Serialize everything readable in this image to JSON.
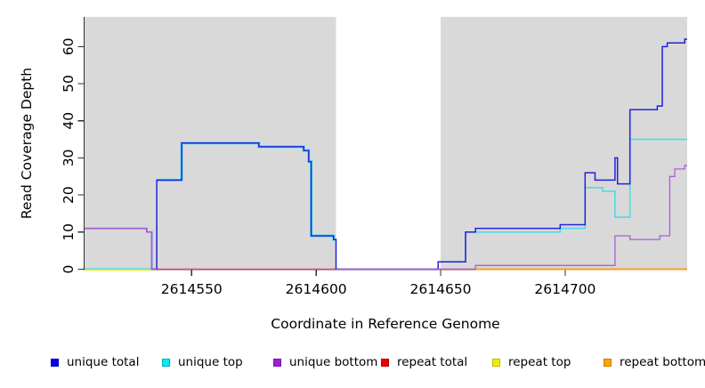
{
  "chart_data": {
    "type": "line",
    "interpolation": "step-after",
    "title": "",
    "xlabel": "Coordinate in Reference Genome",
    "ylabel": "Read Coverage Depth",
    "xlim": [
      2614507,
      2614749
    ],
    "ylim": [
      0,
      68
    ],
    "xticks": [
      2614550,
      2614600,
      2614650,
      2614700
    ],
    "yticks": [
      0,
      10,
      20,
      30,
      40,
      50,
      60
    ],
    "grid": false,
    "page_background": "#ffffff",
    "shaded_regions": [
      {
        "label": "left-gray-region",
        "x0": 2614507,
        "x1": 2614608,
        "color": "#D9D9D9"
      },
      {
        "label": "right-gray-region",
        "x0": 2614650,
        "x1": 2614749,
        "color": "#D9D9D9"
      }
    ],
    "gap_region": {
      "label": "uncovered-white-band",
      "x0": 2614608,
      "x1": 2614650
    },
    "series": [
      {
        "name": "repeat top",
        "color": "#E8E83C",
        "stroke_width": 2.6,
        "segments": [
          {
            "dy": 0.5,
            "points": [
              [
                2614507,
                0
              ],
              [
                2614534,
                0
              ]
            ]
          }
        ]
      },
      {
        "name": "repeat total",
        "color": "#E04765",
        "stroke_width": 1.5,
        "segments": [
          {
            "points": [
              [
                2614534,
                0
              ],
              [
                2614664,
                0
              ]
            ]
          }
        ]
      },
      {
        "name": "repeat bottom",
        "color": "#FF9D1E",
        "stroke_width": 1.9,
        "segments": [
          {
            "points": [
              [
                2614664,
                0
              ],
              [
                2614749,
                0
              ]
            ]
          }
        ]
      },
      {
        "name": "unique top",
        "color": "#49DEE8",
        "stroke_width": 1.6,
        "segments": [
          {
            "dy": -0.5,
            "stroke_width": 1.2,
            "points": [
              [
                2614507,
                0
              ],
              [
                2614534,
                0
              ]
            ]
          },
          {
            "stroke_width": 3.0,
            "points": [
              [
                2614536,
                24
              ],
              [
                2614546,
                34
              ],
              [
                2614577,
                33
              ],
              [
                2614595,
                32
              ],
              [
                2614597,
                29
              ],
              [
                2614598,
                9
              ],
              [
                2614607,
                8
              ],
              [
                2614608,
                8
              ]
            ]
          },
          {
            "points": [
              [
                2614649,
                2
              ],
              [
                2614660,
                10
              ],
              [
                2614698,
                11
              ],
              [
                2614708,
                22
              ],
              [
                2614715,
                21
              ],
              [
                2614720,
                14
              ],
              [
                2614726,
                35
              ],
              [
                2614749,
                35
              ]
            ]
          }
        ]
      },
      {
        "name": "unique total",
        "color": "#2222DD",
        "stroke_width": 1.5,
        "segments": [
          {
            "points": [
              [
                2614507,
                11
              ],
              [
                2614532,
                10
              ],
              [
                2614534,
                0
              ],
              [
                2614536,
                24
              ],
              [
                2614546,
                34
              ],
              [
                2614577,
                33
              ],
              [
                2614595,
                32
              ],
              [
                2614597,
                29
              ],
              [
                2614598,
                9
              ],
              [
                2614607,
                8
              ],
              [
                2614608,
                0
              ],
              [
                2614649,
                2
              ],
              [
                2614660,
                10
              ],
              [
                2614664,
                11
              ],
              [
                2614698,
                12
              ],
              [
                2614708,
                26
              ],
              [
                2614712,
                24
              ],
              [
                2614720,
                30
              ],
              [
                2614721,
                23
              ],
              [
                2614726,
                43
              ],
              [
                2614737,
                44
              ],
              [
                2614739,
                60
              ],
              [
                2614741,
                61
              ],
              [
                2614748,
                62
              ],
              [
                2614749,
                62
              ]
            ]
          }
        ]
      },
      {
        "name": "unique bottom",
        "color": "#A95FD5",
        "stroke_width": 1.3,
        "segments": [
          {
            "points": [
              [
                2614507,
                11
              ],
              [
                2614532,
                10
              ],
              [
                2614534,
                0
              ],
              [
                2614536,
                0
              ]
            ]
          },
          {
            "points": [
              [
                2614608,
                0
              ],
              [
                2614664,
                1
              ],
              [
                2614720,
                9
              ],
              [
                2614726,
                8
              ],
              [
                2614738,
                9
              ],
              [
                2614742,
                25
              ],
              [
                2614744,
                27
              ],
              [
                2614748,
                28
              ],
              [
                2614749,
                28
              ]
            ]
          }
        ]
      }
    ],
    "legend": {
      "position": "bottom",
      "items": [
        {
          "label": "unique total",
          "color": "#0000EE",
          "border": "#0000B0"
        },
        {
          "label": "unique top",
          "color": "#00EEEE",
          "border": "#00AABB"
        },
        {
          "label": "unique bottom",
          "color": "#9D1FD8",
          "border": "#7A14AE"
        },
        {
          "label": "repeat total",
          "color": "#EE0000",
          "border": "#B00000"
        },
        {
          "label": "repeat top",
          "color": "#EEEE00",
          "border": "#BBBB00"
        },
        {
          "label": "repeat bottom",
          "color": "#FFA500",
          "border": "#C87E00"
        }
      ]
    }
  }
}
